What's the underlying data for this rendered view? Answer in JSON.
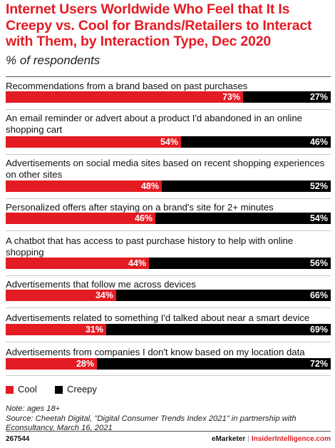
{
  "title": "Internet Users Worldwide Who Feel that It Is Creepy vs. Cool for Brands/Retailers to Interact with Them, by Interaction Type, Dec 2020",
  "subtitle": "% of respondents",
  "legend": {
    "cool": "Cool",
    "creepy": "Creepy"
  },
  "colors": {
    "cool": "#e31b23",
    "creepy": "#000000",
    "accent": "#e31b23"
  },
  "chart_data": {
    "type": "bar",
    "stacked": true,
    "orientation": "horizontal",
    "categories": [
      "Recommendations from a brand based on past purchases",
      "An email reminder or advert about a product I'd abandoned in an online shopping cart",
      "Advertisements on social media sites based on recent shopping experiences on other sites",
      "Personalized offers after staying on a brand's site for 2+ minutes",
      "A chatbot that has access to past purchase history to help with online shopping",
      "Advertisements  that follow me across devices",
      "Advertisements related to something I'd talked about near a smart device",
      "Advertisements from companies I don't know based on my location data"
    ],
    "series": [
      {
        "name": "Cool",
        "values": [
          73,
          54,
          48,
          46,
          44,
          34,
          31,
          28
        ],
        "labels": [
          "73%",
          "54%",
          "48%",
          "46%",
          "44%",
          "34%",
          "31%",
          "28%"
        ]
      },
      {
        "name": "Creepy",
        "values": [
          27,
          46,
          52,
          54,
          56,
          66,
          69,
          72
        ],
        "labels": [
          "27%",
          "46%",
          "52%",
          "54%",
          "56%",
          "66%",
          "69%",
          "72%"
        ]
      }
    ],
    "xlim": [
      0,
      100
    ],
    "legend_position": "bottom-left"
  },
  "notes": {
    "note": "Note: ages 18+",
    "source": "Source: Cheetah Digital, \"Digital Consumer Trends Index 2021\" in partnership with Econsultancy, March 16, 2021"
  },
  "footer": {
    "id": "267544",
    "brand1": "eMarketer",
    "separator": "|",
    "brand2": "InsiderIntelligence.com"
  }
}
